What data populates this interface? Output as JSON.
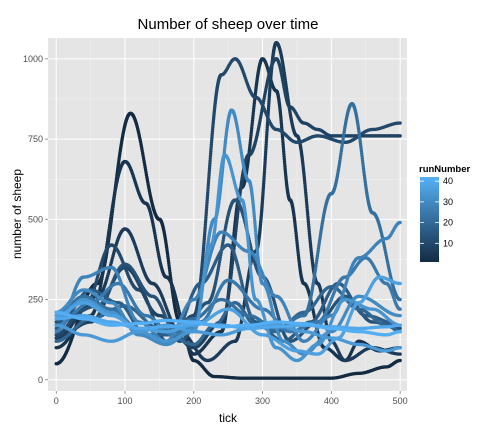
{
  "chart_data": {
    "type": "scatter",
    "title": "Number of sheep over time",
    "xlabel": "tick",
    "ylabel": "number of sheep",
    "xlim": [
      -12,
      510
    ],
    "ylim": [
      -35,
      1065
    ],
    "x_ticks": [
      0,
      100,
      200,
      300,
      400,
      500
    ],
    "y_ticks": [
      0,
      250,
      500,
      750,
      1000
    ],
    "grid": true,
    "legend": {
      "title": "runNumber",
      "placement": "right",
      "type": "colorbar",
      "range": [
        1,
        42
      ],
      "ticks": [
        10,
        20,
        30,
        40
      ],
      "color_low": "#132B43",
      "color_high": "#56B1F7"
    },
    "series": [
      {
        "run": 1,
        "x": [
          0,
          60,
          108,
          150,
          180,
          200,
          230,
          270,
          300,
          330,
          360,
          390,
          400,
          440,
          480,
          500
        ],
        "y": [
          50,
          300,
          830,
          500,
          180,
          60,
          10,
          5,
          5,
          5,
          5,
          5,
          5,
          20,
          40,
          60
        ]
      },
      {
        "run": 4,
        "x": [
          0,
          50,
          100,
          130,
          160,
          200,
          240,
          270,
          300,
          320,
          340,
          360,
          390,
          420,
          440,
          470,
          500
        ],
        "y": [
          100,
          200,
          680,
          550,
          320,
          80,
          150,
          600,
          1000,
          900,
          560,
          300,
          100,
          60,
          120,
          90,
          100
        ]
      },
      {
        "run": 6,
        "x": [
          0,
          60,
          100,
          140,
          180,
          220,
          260,
          290,
          320,
          350,
          380,
          400,
          420,
          460,
          500
        ],
        "y": [
          130,
          260,
          470,
          300,
          150,
          60,
          120,
          400,
          1050,
          760,
          300,
          120,
          60,
          100,
          80
        ]
      },
      {
        "run": 8,
        "x": [
          0,
          50,
          100,
          150,
          200,
          240,
          280,
          320,
          340,
          360,
          380,
          400,
          430,
          460,
          500
        ],
        "y": [
          130,
          180,
          350,
          200,
          100,
          180,
          700,
          1000,
          850,
          800,
          780,
          760,
          760,
          760,
          760
        ]
      },
      {
        "run": 10,
        "x": [
          0,
          40,
          80,
          120,
          160,
          200,
          240,
          260,
          290,
          320,
          350,
          380,
          420,
          460,
          500
        ],
        "y": [
          140,
          220,
          420,
          280,
          120,
          200,
          950,
          1000,
          880,
          780,
          740,
          760,
          740,
          780,
          800
        ]
      },
      {
        "run": 13,
        "x": [
          0,
          60,
          100,
          140,
          180,
          220,
          260,
          300,
          340,
          380,
          420,
          460,
          500
        ],
        "y": [
          180,
          230,
          360,
          260,
          120,
          240,
          560,
          320,
          120,
          180,
          260,
          180,
          160
        ]
      },
      {
        "run": 16,
        "x": [
          0,
          50,
          90,
          130,
          170,
          210,
          250,
          290,
          330,
          370,
          410,
          450,
          500
        ],
        "y": [
          160,
          280,
          240,
          140,
          140,
          300,
          420,
          180,
          120,
          180,
          300,
          200,
          170
        ]
      },
      {
        "run": 19,
        "x": [
          0,
          50,
          100,
          150,
          200,
          230,
          260,
          290,
          320,
          360,
          400,
          440,
          480,
          500
        ],
        "y": [
          120,
          190,
          230,
          160,
          110,
          170,
          240,
          170,
          150,
          210,
          290,
          220,
          170,
          150
        ]
      },
      {
        "run": 22,
        "x": [
          0,
          40,
          80,
          120,
          160,
          200,
          240,
          280,
          320,
          360,
          400,
          430,
          460,
          500
        ],
        "y": [
          200,
          260,
          220,
          160,
          150,
          190,
          250,
          200,
          160,
          200,
          580,
          860,
          520,
          250
        ]
      },
      {
        "run": 25,
        "x": [
          0,
          50,
          90,
          130,
          170,
          210,
          250,
          300,
          340,
          380,
          420,
          450,
          480,
          500
        ],
        "y": [
          170,
          240,
          300,
          200,
          140,
          180,
          310,
          220,
          150,
          180,
          320,
          380,
          300,
          220
        ]
      },
      {
        "run": 28,
        "x": [
          0,
          40,
          80,
          120,
          160,
          200,
          240,
          280,
          320,
          360,
          400,
          440,
          480,
          500
        ],
        "y": [
          150,
          320,
          350,
          180,
          120,
          250,
          460,
          400,
          260,
          120,
          200,
          380,
          440,
          490
        ]
      },
      {
        "run": 30,
        "x": [
          0,
          40,
          80,
          120,
          160,
          200,
          230,
          255,
          280,
          300,
          330,
          360,
          400,
          440,
          500
        ],
        "y": [
          210,
          280,
          240,
          140,
          110,
          160,
          500,
          840,
          620,
          300,
          120,
          80,
          150,
          260,
          200
        ]
      },
      {
        "run": 33,
        "x": [
          0,
          40,
          80,
          120,
          160,
          200,
          225,
          245,
          270,
          290,
          320,
          350,
          380,
          420,
          460,
          500
        ],
        "y": [
          190,
          250,
          210,
          150,
          120,
          150,
          420,
          700,
          560,
          250,
          100,
          60,
          110,
          250,
          220,
          170
        ]
      },
      {
        "run": 35,
        "x": [
          0,
          40,
          80,
          120,
          160,
          200,
          240,
          280,
          320,
          360,
          400,
          440,
          480,
          500
        ],
        "y": [
          170,
          140,
          120,
          150,
          170,
          150,
          140,
          160,
          170,
          150,
          130,
          110,
          90,
          100
        ]
      },
      {
        "run": 37,
        "x": [
          0,
          40,
          80,
          120,
          160,
          200,
          250,
          300,
          350,
          380,
          410,
          440,
          470,
          500
        ],
        "y": [
          200,
          240,
          200,
          160,
          150,
          170,
          220,
          140,
          90,
          80,
          130,
          240,
          320,
          300
        ]
      },
      {
        "run": 39,
        "x": [
          0,
          40,
          80,
          120,
          160,
          200,
          240,
          280,
          320,
          360,
          400,
          440,
          480,
          500
        ],
        "y": [
          190,
          200,
          180,
          160,
          165,
          175,
          170,
          160,
          165,
          170,
          165,
          160,
          165,
          170
        ]
      },
      {
        "run": 41,
        "x": [
          0,
          40,
          80,
          120,
          160,
          200,
          240,
          280,
          320,
          360,
          400,
          440,
          480,
          500
        ],
        "y": [
          210,
          190,
          170,
          175,
          185,
          180,
          165,
          170,
          180,
          175,
          160,
          150,
          140,
          150
        ]
      }
    ]
  }
}
